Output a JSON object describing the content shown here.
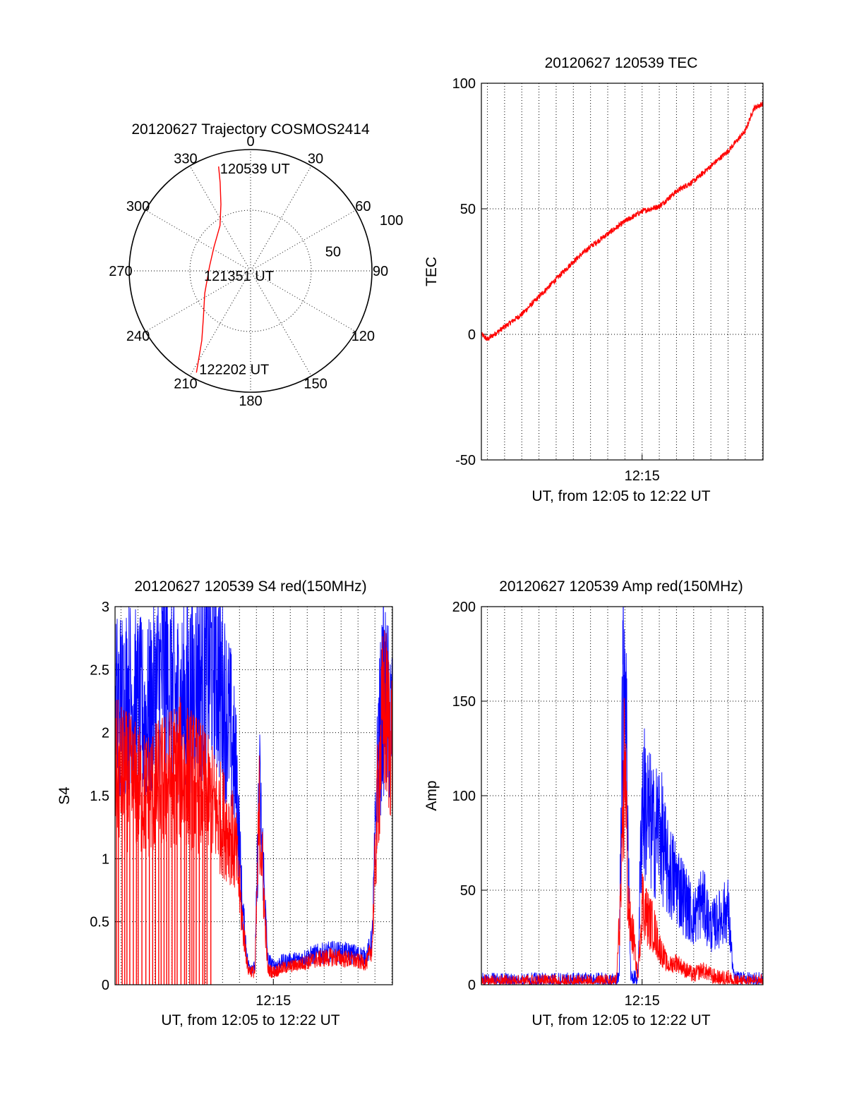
{
  "colors": {
    "red": "#ff0000",
    "blue": "#0000ff",
    "axis": "#000000"
  },
  "chart_data": [
    {
      "id": "polar",
      "type": "scatter",
      "subtype": "polar-trajectory",
      "title": "20120627 Trajectory COSMOS2414",
      "azimuth_labels": [
        "0",
        "30",
        "60",
        "90",
        "120",
        "150",
        "180",
        "210",
        "240",
        "270",
        "300",
        "330"
      ],
      "radius_labels": [
        "50",
        "100"
      ],
      "radius_max": 100,
      "trajectory": [
        [
          343,
          90
        ],
        [
          341,
          77
        ],
        [
          336,
          60
        ],
        [
          326,
          45
        ],
        [
          303,
          36
        ],
        [
          276,
          34
        ],
        [
          244,
          42
        ],
        [
          225,
          55
        ],
        [
          215,
          70
        ],
        [
          210,
          86
        ],
        [
          208,
          95
        ]
      ],
      "annotations": [
        "120539 UT",
        "121351 UT",
        "122202 UT"
      ]
    },
    {
      "id": "tec",
      "type": "line",
      "title": "20120627 120539 TEC",
      "ylabel": "TEC",
      "xlabel": "UT, from 12:05 to 12:22 UT",
      "x_range": [
        "12:05:39",
        "12:22:02"
      ],
      "x_ticks": [
        "12:15"
      ],
      "ylim": [
        -50,
        100
      ],
      "y_ticks": [
        "100",
        "50",
        "0",
        "-50"
      ],
      "grid": true,
      "series": [
        {
          "color": "red",
          "x": [
            "12:05:39",
            "12:06:00",
            "12:07:00",
            "12:08:00",
            "12:09:00",
            "12:10:00",
            "12:11:00",
            "12:12:00",
            "12:13:00",
            "12:14:00",
            "12:14:30",
            "12:15:00",
            "12:16:00",
            "12:17:00",
            "12:18:00",
            "12:19:00",
            "12:20:00",
            "12:21:00",
            "12:21:30",
            "12:22:02"
          ],
          "values": [
            0,
            -2,
            3,
            8,
            15,
            22,
            29,
            35,
            40,
            45,
            47,
            49,
            51,
            57,
            61,
            67,
            73,
            81,
            90,
            92
          ]
        }
      ]
    },
    {
      "id": "s4",
      "type": "line",
      "title": "20120627 120539 S4 red(150MHz)",
      "ylabel": "S4",
      "xlabel": "UT, from 12:05 to 12:22 UT",
      "x_range": [
        "12:05:39",
        "12:22:02"
      ],
      "x_ticks": [
        "12:15"
      ],
      "ylim": [
        0,
        3
      ],
      "y_ticks": [
        "3",
        "2.5",
        "2",
        "1.5",
        "1",
        "0.5",
        "0"
      ],
      "grid": true,
      "series": [
        {
          "color": "blue",
          "x": [
            "12:05:39",
            "12:06:30",
            "12:07:30",
            "12:08:30",
            "12:09:30",
            "12:10:30",
            "12:11:30",
            "12:12:30",
            "12:12:50",
            "12:13:10",
            "12:13:30",
            "12:13:55",
            "12:14:10",
            "12:14:40",
            "12:15:00",
            "12:15:10",
            "12:15:30",
            "12:16:30",
            "12:17:30",
            "12:18:30",
            "12:19:30",
            "12:20:30",
            "12:20:50",
            "12:21:10",
            "12:21:30",
            "12:22:02"
          ],
          "values": [
            2.2,
            2.3,
            2.1,
            2.5,
            2.2,
            2.4,
            2.6,
            2.0,
            1.6,
            0.6,
            0.16,
            0.13,
            1.6,
            0.2,
            0.15,
            0.16,
            0.18,
            0.2,
            0.24,
            0.26,
            0.25,
            0.22,
            0.35,
            1.8,
            2.3,
            2.0
          ]
        },
        {
          "color": "red",
          "x": [
            "12:05:39",
            "12:06:30",
            "12:07:30",
            "12:08:30",
            "12:09:30",
            "12:10:30",
            "12:11:30",
            "12:12:30",
            "12:12:50",
            "12:13:10",
            "12:13:30",
            "12:13:55",
            "12:14:10",
            "12:14:40",
            "12:15:00",
            "12:15:10",
            "12:15:30",
            "12:16:30",
            "12:17:30",
            "12:18:30",
            "12:19:30",
            "12:20:30",
            "12:20:50",
            "12:21:10",
            "12:21:30",
            "12:22:02"
          ],
          "values": [
            1.7,
            1.6,
            1.5,
            1.6,
            1.7,
            1.6,
            1.4,
            1.2,
            1.0,
            0.5,
            0.12,
            0.1,
            1.4,
            0.12,
            0.1,
            0.11,
            0.13,
            0.16,
            0.2,
            0.22,
            0.2,
            0.17,
            0.3,
            1.5,
            2.2,
            1.9
          ]
        }
      ]
    },
    {
      "id": "amp",
      "type": "line",
      "title": "20120627 120539 Amp red(150MHz)",
      "ylabel": "Amp",
      "xlabel": "UT, from 12:05 to 12:22 UT",
      "x_range": [
        "12:05:39",
        "12:22:02"
      ],
      "x_ticks": [
        "12:15"
      ],
      "ylim": [
        0,
        200
      ],
      "y_ticks": [
        "200",
        "150",
        "100",
        "50",
        "0"
      ],
      "grid": true,
      "series": [
        {
          "color": "blue",
          "x": [
            "12:05:39",
            "12:13:30",
            "12:13:40",
            "12:13:50",
            "12:14:00",
            "12:14:10",
            "12:14:20",
            "12:14:30",
            "12:14:45",
            "12:15:00",
            "12:15:20",
            "12:15:40",
            "12:16:00",
            "12:16:30",
            "12:17:00",
            "12:17:30",
            "12:18:00",
            "12:18:30",
            "12:19:00",
            "12:19:30",
            "12:20:00",
            "12:20:20",
            "12:22:02"
          ],
          "values": [
            2,
            2,
            4,
            140,
            180,
            90,
            5,
            3,
            4,
            100,
            90,
            80,
            85,
            60,
            55,
            45,
            35,
            45,
            30,
            35,
            40,
            3,
            2
          ]
        },
        {
          "color": "red",
          "x": [
            "12:05:39",
            "12:13:30",
            "12:13:50",
            "12:14:00",
            "12:14:10",
            "12:14:20",
            "12:14:30",
            "12:14:45",
            "12:15:00",
            "12:15:20",
            "12:15:40",
            "12:16:00",
            "12:16:30",
            "12:17:00",
            "12:17:30",
            "12:18:00",
            "12:18:30",
            "12:19:00",
            "12:19:30",
            "12:20:00",
            "12:20:20",
            "12:22:02"
          ],
          "values": [
            1,
            1,
            60,
            130,
            45,
            30,
            25,
            3,
            45,
            35,
            30,
            20,
            10,
            12,
            8,
            5,
            8,
            5,
            3,
            4,
            1,
            1
          ]
        }
      ]
    }
  ]
}
